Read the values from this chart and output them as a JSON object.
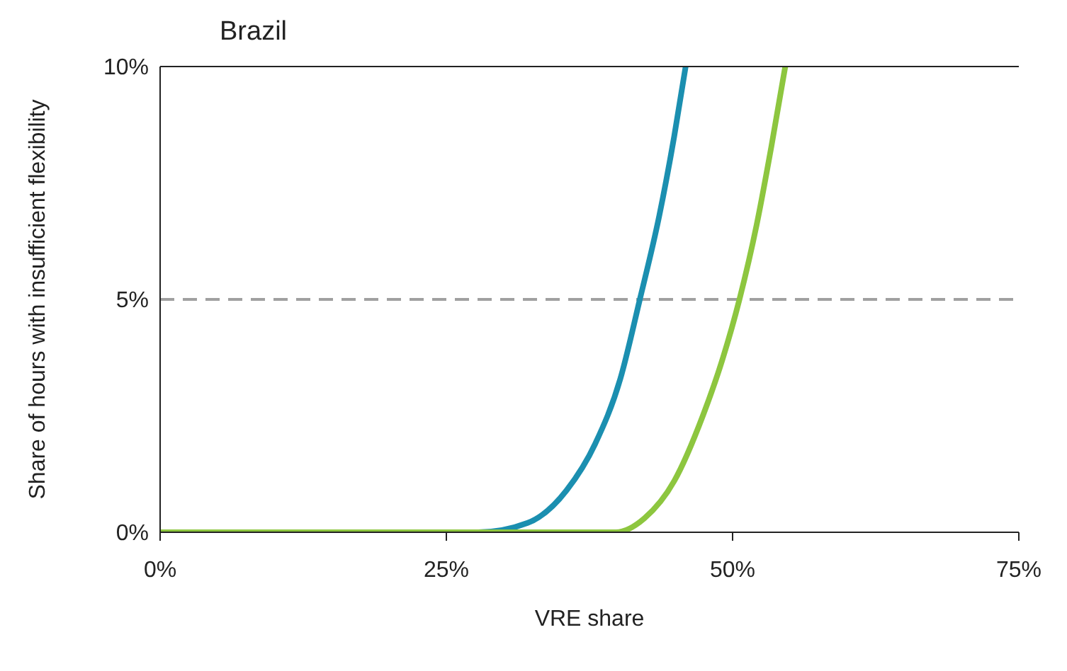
{
  "chart_data": {
    "type": "line",
    "title": "Brazil",
    "xlabel": "VRE share",
    "ylabel": "Share of hours with insufficient flexibility",
    "xlim": [
      0,
      75
    ],
    "xticks": [
      {
        "value": 0,
        "label": "0%"
      },
      {
        "value": 25,
        "label": "25%"
      },
      {
        "value": 50,
        "label": "50%"
      },
      {
        "value": 75,
        "label": "75%"
      }
    ],
    "ylim": [
      0,
      10
    ],
    "yticks": [
      {
        "value": 0,
        "label": "0%"
      },
      {
        "value": 5,
        "label": "5%"
      },
      {
        "value": 10,
        "label": "10%"
      }
    ],
    "grid": false,
    "legend": false,
    "marker": "none",
    "line_style": "solid",
    "series": [
      {
        "color": "#1b8fb0",
        "x": [
          0,
          27.8,
          32.1,
          35.5,
          38.0,
          40.2,
          41.9,
          43.6,
          44.9,
          45.9
        ],
        "values": [
          0,
          0,
          0.2,
          0.9,
          1.9,
          3.3,
          5,
          6.8,
          8.5,
          10
        ]
      },
      {
        "color": "#8dc63f",
        "x": [
          0,
          39.8,
          42.3,
          44.9,
          47.4,
          49.1,
          50.6,
          52.1,
          53.4,
          54.6
        ],
        "values": [
          0,
          0,
          0.3,
          1.1,
          2.5,
          3.7,
          5,
          6.6,
          8.3,
          10
        ]
      }
    ],
    "ref_lines": [
      {
        "axis": "y",
        "value": 5,
        "color": "#a0a0a0",
        "line_style": "dashed"
      }
    ]
  }
}
